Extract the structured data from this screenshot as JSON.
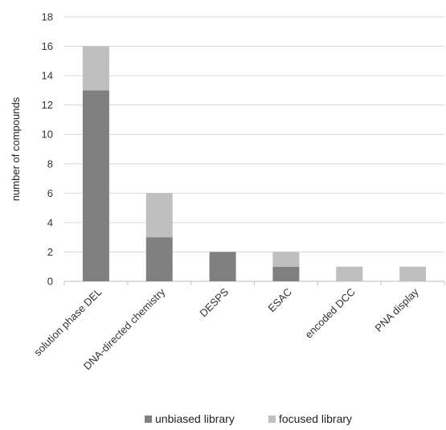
{
  "chart_data": {
    "type": "bar",
    "stacked": true,
    "categories": [
      "solution phase DEL",
      "DNA-directed chemistry",
      "DESPS",
      "ESAC",
      "encoded DCC",
      "PNA display"
    ],
    "series": [
      {
        "name": "unbiased library",
        "values": [
          13,
          3,
          2,
          1,
          0,
          0
        ],
        "color": "#808080"
      },
      {
        "name": "focused library",
        "values": [
          3,
          3,
          0,
          1,
          1,
          1
        ],
        "color": "#bfbfbf"
      }
    ],
    "title": "",
    "xlabel": "",
    "ylabel": "number of compounds",
    "ylim": [
      0,
      18
    ],
    "yticks": [
      0,
      2,
      4,
      6,
      8,
      10,
      12,
      14,
      16,
      18
    ],
    "grid": true,
    "legend_position": "bottom"
  }
}
